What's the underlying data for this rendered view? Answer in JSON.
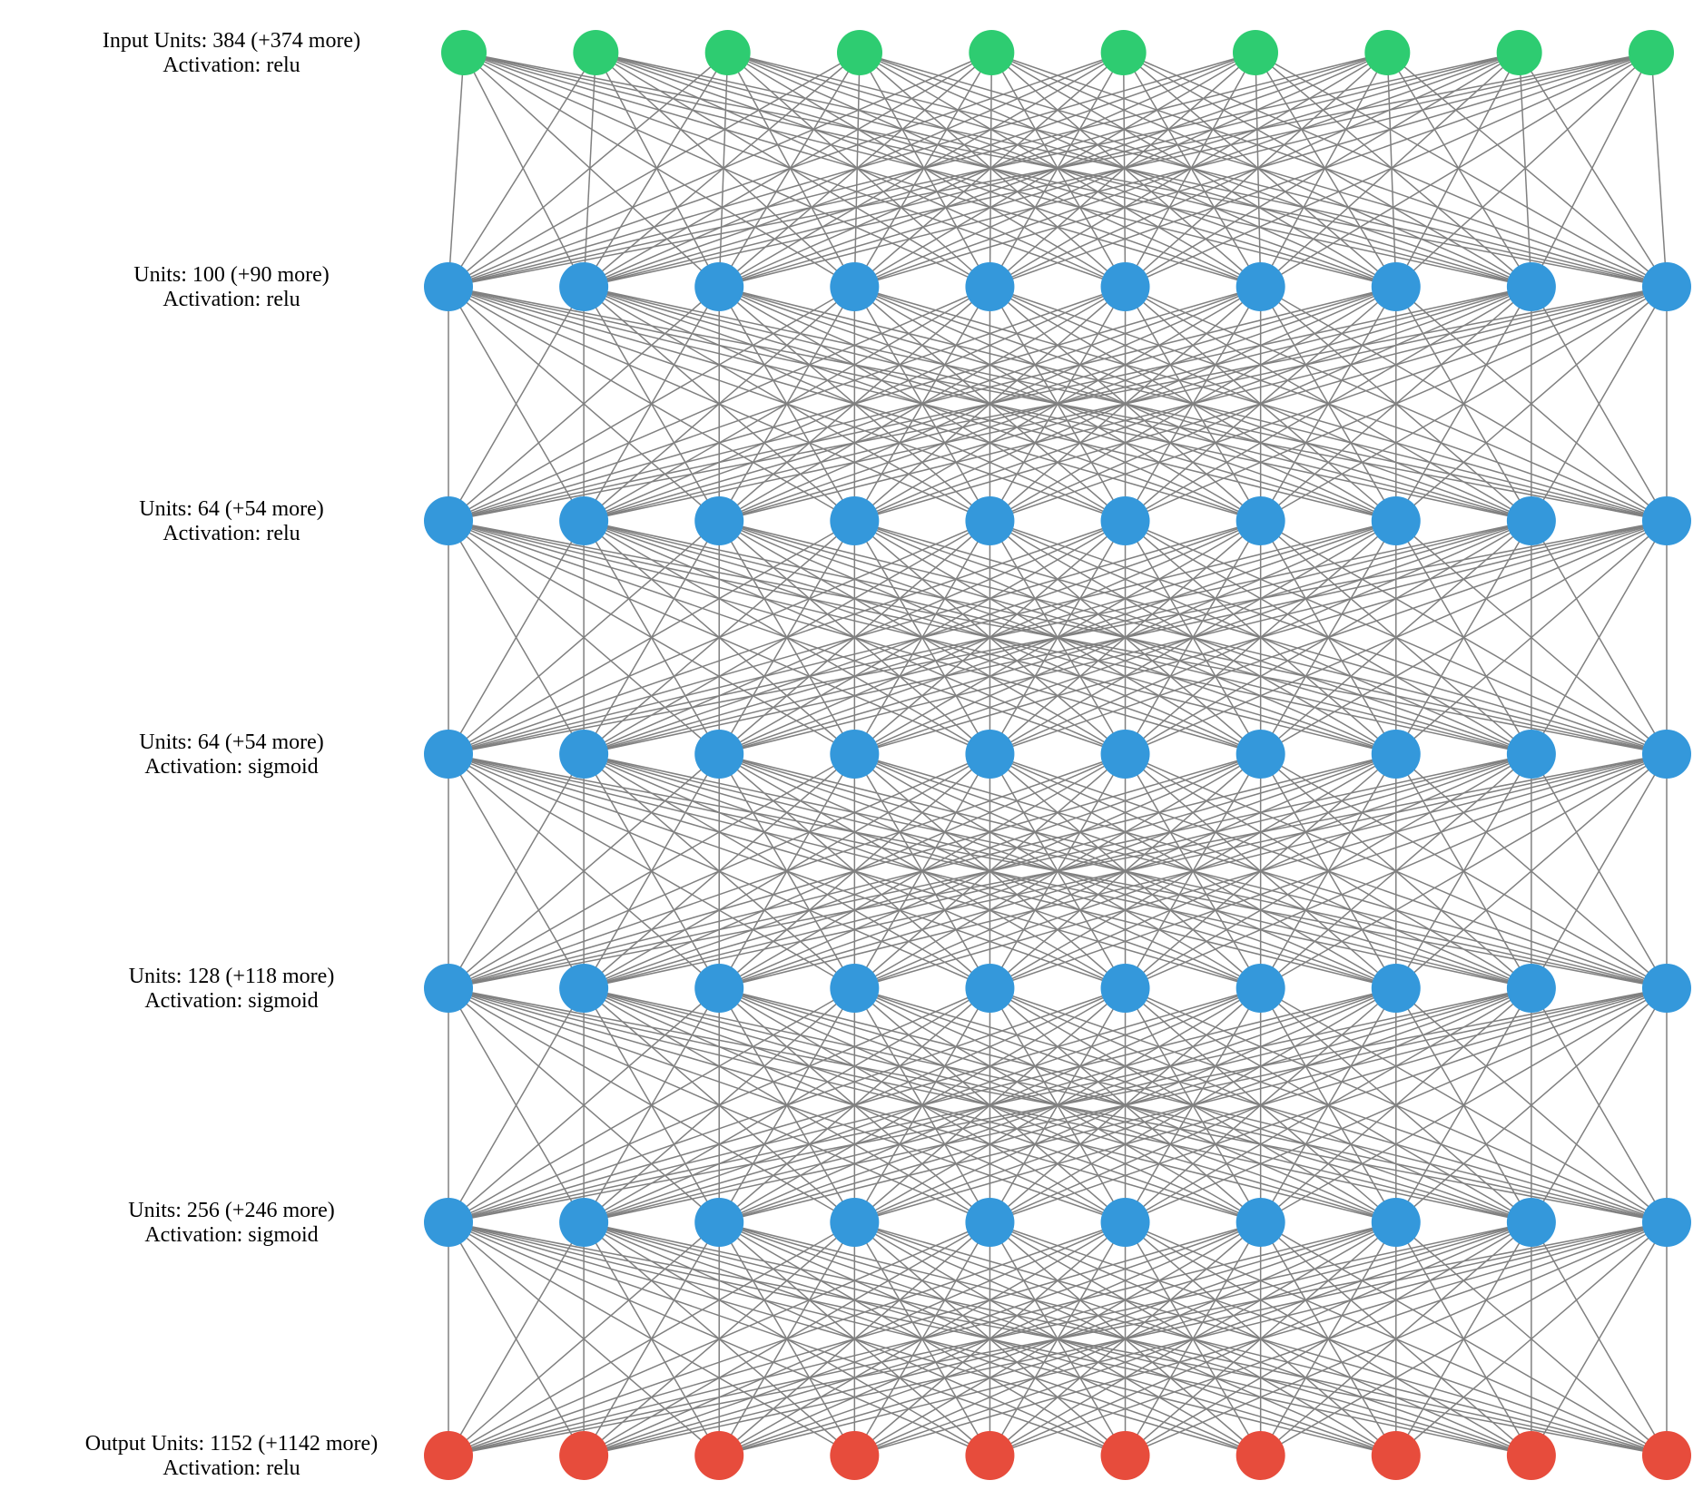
{
  "network": {
    "neurons_shown_per_layer": 10,
    "layers": [
      {
        "units_line": "Input Units: 384 (+374 more)",
        "activation_line": "Activation: relu",
        "kind": "input"
      },
      {
        "units_line": "Units: 100 (+90 more)",
        "activation_line": "Activation: relu",
        "kind": "hidden"
      },
      {
        "units_line": "Units: 64 (+54 more)",
        "activation_line": "Activation: relu",
        "kind": "hidden"
      },
      {
        "units_line": "Units: 64 (+54 more)",
        "activation_line": "Activation: sigmoid",
        "kind": "hidden"
      },
      {
        "units_line": "Units: 128 (+118 more)",
        "activation_line": "Activation: sigmoid",
        "kind": "hidden"
      },
      {
        "units_line": "Units: 256 (+246 more)",
        "activation_line": "Activation: sigmoid",
        "kind": "hidden"
      },
      {
        "units_line": "Output Units: 1152 (+1142 more)",
        "activation_line": "Activation: relu",
        "kind": "output"
      }
    ]
  },
  "colors": {
    "input": "#2ecc71",
    "hidden": "#3498db",
    "output": "#e74c3c",
    "edge": "#808080"
  }
}
